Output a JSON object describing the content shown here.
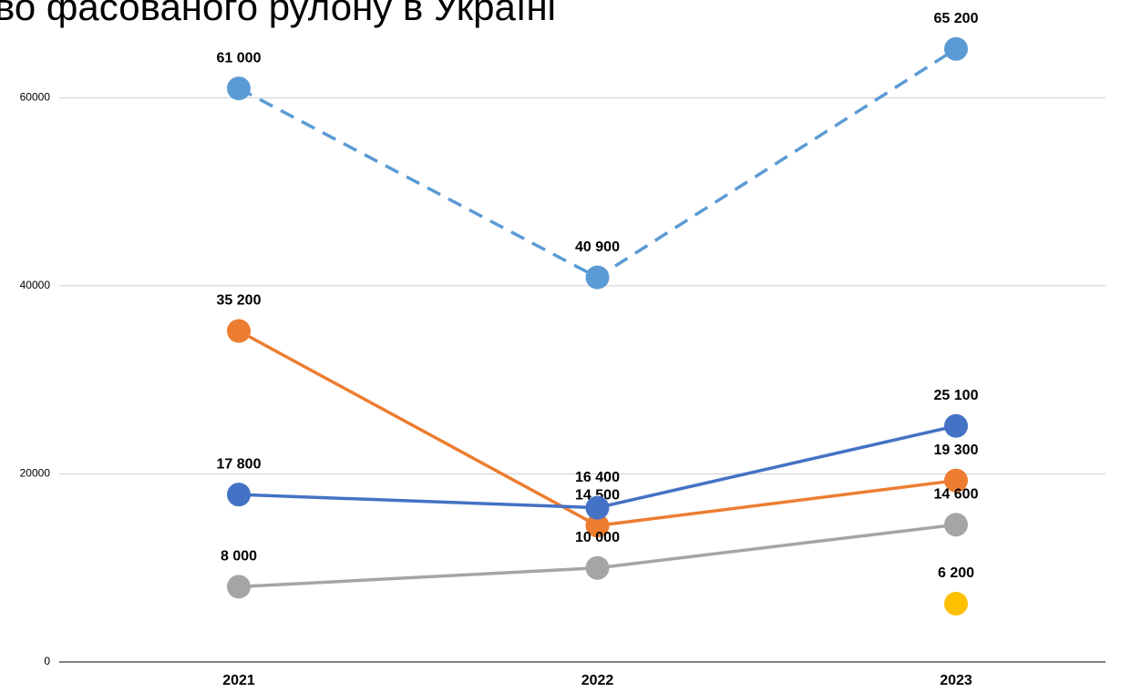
{
  "chart_data": {
    "type": "line",
    "title": "во фасованого рулону в Україні",
    "categories": [
      "2021",
      "2022",
      "2023"
    ],
    "series": [
      {
        "color": "#5b9bd5",
        "line_style": "dashed",
        "values": [
          61000,
          40900,
          65200
        ],
        "value_labels": [
          "61 000",
          "40 900",
          "65 200"
        ]
      },
      {
        "color": "#ed7d31",
        "line_style": "solid",
        "values": [
          35200,
          14500,
          19300
        ],
        "value_labels": [
          "35 200",
          "14 500",
          "19 300"
        ]
      },
      {
        "color": "#4472c4",
        "line_style": "solid",
        "values": [
          17800,
          16400,
          25100
        ],
        "value_labels": [
          "17 800",
          "16 400",
          "25 100"
        ]
      },
      {
        "color": "#a5a5a5",
        "line_style": "solid",
        "values": [
          8000,
          10000,
          14600
        ],
        "value_labels": [
          "8 000",
          "10 000",
          "14 600"
        ]
      },
      {
        "color": "#ffc000",
        "line_style": "solid",
        "values": [
          null,
          null,
          6200
        ],
        "value_labels": [
          null,
          null,
          "6 200"
        ]
      }
    ],
    "ylim": [
      0,
      70400
    ],
    "yticks": [
      0,
      20000,
      40000,
      60000
    ],
    "grid": true
  }
}
